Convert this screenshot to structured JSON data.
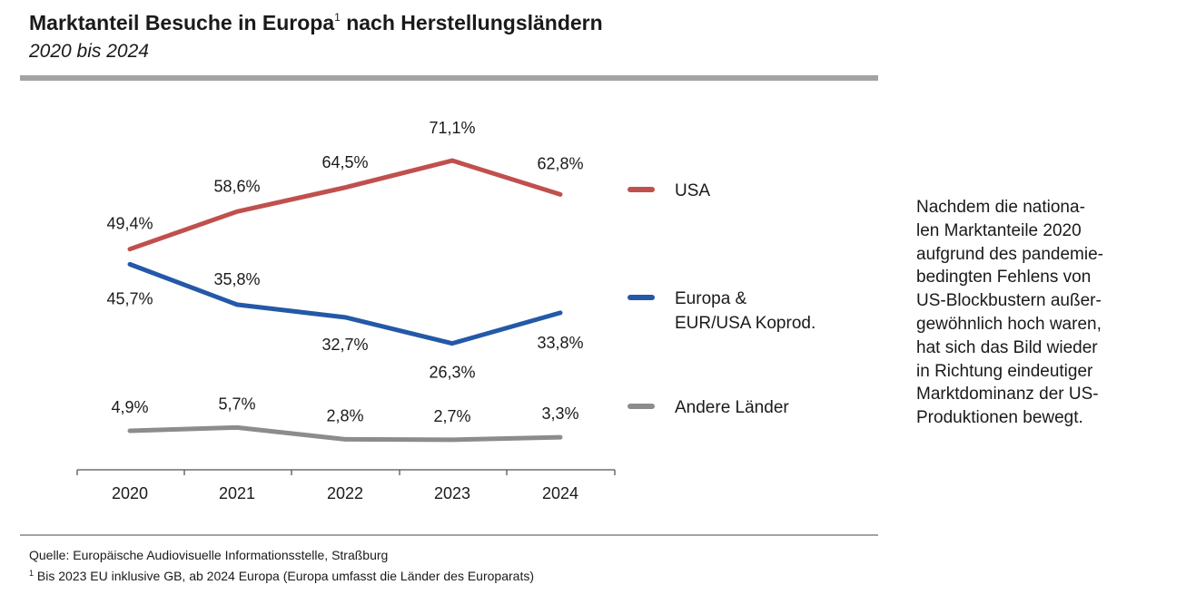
{
  "title": {
    "text": "Marktanteil Besuche in Europa",
    "superscript": "1",
    "suffix": " nach Herstellungsländern"
  },
  "subtitle": "2020 bis 2024",
  "chart_data": {
    "type": "line",
    "title": "Marktanteil Besuche in Europa nach Herstellungsländern",
    "subtitle": "2020 bis 2024",
    "x": [
      "2020",
      "2021",
      "2022",
      "2023",
      "2024"
    ],
    "ylim": [
      0,
      80
    ],
    "grid": false,
    "legend_position": "right",
    "series": [
      {
        "name": "USA",
        "values": [
          49.4,
          58.6,
          64.5,
          71.1,
          62.8
        ],
        "labels": [
          "49,4%",
          "58,6%",
          "64,5%",
          "71,1%",
          "62,8%"
        ],
        "color": "#c0504d"
      },
      {
        "name": "Europa & EUR/USA Koprod.",
        "legend_lines": [
          "Europa &",
          "EUR/USA Koprod."
        ],
        "values": [
          45.7,
          35.8,
          32.7,
          26.3,
          33.8
        ],
        "labels": [
          "45,7%",
          "35,8%",
          "32,7%",
          "26,3%",
          "33,8%"
        ],
        "color": "#2458a8"
      },
      {
        "name": "Andere Länder",
        "values": [
          4.9,
          5.7,
          2.8,
          2.7,
          3.3
        ],
        "labels": [
          "4,9%",
          "5,7%",
          "2,8%",
          "2,7%",
          "3,3%"
        ],
        "color": "#8c8c8c"
      }
    ]
  },
  "side_note": "Nachdem die nationa-\nlen Marktanteile 2020\naufgrund des pandemie-\nbedingten Fehlens von\nUS-Blockbustern außer-\ngewöhnlich hoch waren,\nhat sich das Bild wieder\nin Richtung eindeutiger\nMarktdominanz der US-\nProduktionen bewegt.",
  "footer": {
    "source": "Quelle: Europäische Audiovisuelle Informationsstelle, Straßburg",
    "note_marker": "1",
    "note": " Bis 2023 EU inklusive GB, ab 2024 Europa (Europa umfasst die Länder des Europarats)"
  }
}
